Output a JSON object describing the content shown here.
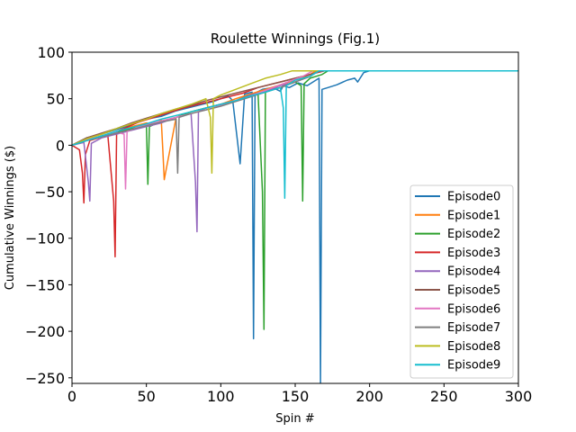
{
  "chart_data": {
    "type": "line",
    "title": "Roulette Winnings (Fig.1)",
    "xlabel": "Spin #",
    "ylabel": "Cumulative Winnings ($)",
    "xlim": [
      0,
      300
    ],
    "ylim": [
      -256,
      100
    ],
    "xticks": [
      0,
      50,
      100,
      150,
      200,
      250,
      300
    ],
    "yticks": [
      100,
      50,
      0,
      -50,
      -100,
      -150,
      -200,
      -250
    ],
    "xtick_labels": [
      "0",
      "50",
      "100",
      "150",
      "200",
      "250",
      "300"
    ],
    "ytick_labels": [
      "100",
      "50",
      "0",
      "−50",
      "−100",
      "−150",
      "−200",
      "−250"
    ],
    "grid": false,
    "legend_position": "lower right",
    "series": [
      {
        "name": "Episode0",
        "color": "#1f77b4",
        "x": [
          0,
          10,
          20,
          30,
          40,
          50,
          60,
          70,
          80,
          95,
          105,
          108,
          113,
          116,
          121,
          122,
          123,
          128,
          135,
          140,
          142,
          146,
          152,
          158,
          164,
          166,
          167,
          168,
          172,
          178,
          185,
          190,
          192,
          196,
          200,
          300
        ],
        "y": [
          0,
          8,
          12,
          17,
          22,
          28,
          31,
          37,
          41,
          47,
          53,
          48,
          -20,
          55,
          57,
          -208,
          56,
          60,
          62,
          58,
          64,
          62,
          67,
          64,
          70,
          72,
          -256,
          60,
          62,
          65,
          70,
          72,
          68,
          78,
          80,
          80
        ]
      },
      {
        "name": "Episode1",
        "color": "#ff7f0e",
        "x": [
          0,
          10,
          20,
          30,
          40,
          50,
          55,
          60,
          61,
          62,
          70,
          80,
          90,
          100,
          110,
          120,
          130,
          140,
          150,
          160,
          164,
          300
        ],
        "y": [
          0,
          5,
          10,
          14,
          20,
          24,
          22,
          27,
          -5,
          -37,
          30,
          36,
          40,
          44,
          50,
          55,
          60,
          65,
          70,
          76,
          80,
          80
        ]
      },
      {
        "name": "Episode2",
        "color": "#2ca02c",
        "x": [
          0,
          10,
          20,
          30,
          40,
          50,
          51,
          52,
          60,
          70,
          80,
          90,
          100,
          110,
          118,
          125,
          128,
          129,
          130,
          140,
          150,
          154,
          155,
          156,
          160,
          168,
          172,
          300
        ],
        "y": [
          0,
          6,
          10,
          14,
          18,
          22,
          -42,
          20,
          26,
          30,
          36,
          40,
          44,
          48,
          53,
          56,
          -50,
          -198,
          58,
          62,
          68,
          64,
          -60,
          66,
          72,
          76,
          80,
          80
        ]
      },
      {
        "name": "Episode3",
        "color": "#d62728",
        "x": [
          0,
          5,
          7,
          8,
          9,
          12,
          18,
          24,
          28,
          29,
          30,
          35,
          45,
          55,
          65,
          75,
          85,
          95,
          105,
          115,
          125,
          135,
          145,
          155,
          165,
          170,
          300
        ],
        "y": [
          0,
          -5,
          -30,
          -62,
          -10,
          5,
          8,
          12,
          -60,
          -120,
          15,
          18,
          25,
          30,
          35,
          40,
          44,
          48,
          52,
          56,
          62,
          66,
          70,
          74,
          78,
          80,
          80
        ]
      },
      {
        "name": "Episode4",
        "color": "#9467bd",
        "x": [
          0,
          8,
          11,
          12,
          13,
          20,
          30,
          40,
          50,
          60,
          70,
          80,
          83,
          84,
          85,
          90,
          100,
          110,
          120,
          130,
          140,
          150,
          160,
          166,
          300
        ],
        "y": [
          0,
          3,
          -40,
          -60,
          2,
          8,
          12,
          16,
          20,
          24,
          30,
          34,
          -40,
          -93,
          36,
          40,
          44,
          48,
          54,
          58,
          64,
          68,
          74,
          80,
          80
        ]
      },
      {
        "name": "Episode5",
        "color": "#8c564b",
        "x": [
          0,
          10,
          20,
          30,
          40,
          50,
          60,
          70,
          80,
          90,
          100,
          110,
          120,
          130,
          140,
          150,
          160,
          168,
          300
        ],
        "y": [
          0,
          8,
          13,
          18,
          24,
          29,
          34,
          39,
          43,
          48,
          52,
          56,
          60,
          64,
          68,
          72,
          76,
          80,
          80
        ]
      },
      {
        "name": "Episode6",
        "color": "#e377c2",
        "x": [
          0,
          10,
          20,
          30,
          35,
          36,
          37,
          45,
          55,
          65,
          75,
          85,
          95,
          105,
          115,
          125,
          135,
          145,
          155,
          162,
          300
        ],
        "y": [
          0,
          6,
          10,
          14,
          12,
          -47,
          15,
          20,
          24,
          28,
          32,
          36,
          40,
          46,
          50,
          56,
          62,
          68,
          74,
          80,
          80
        ]
      },
      {
        "name": "Episode7",
        "color": "#7f7f7f",
        "x": [
          0,
          10,
          20,
          30,
          40,
          50,
          60,
          70,
          71,
          72,
          80,
          90,
          100,
          110,
          120,
          130,
          140,
          150,
          160,
          165,
          300
        ],
        "y": [
          0,
          5,
          9,
          13,
          17,
          21,
          25,
          28,
          -30,
          30,
          34,
          38,
          42,
          47,
          52,
          57,
          62,
          68,
          74,
          80,
          80
        ]
      },
      {
        "name": "Episode8",
        "color": "#bcbd22",
        "x": [
          0,
          10,
          20,
          30,
          40,
          50,
          60,
          70,
          80,
          90,
          93,
          94,
          95,
          100,
          110,
          120,
          130,
          140,
          148,
          300
        ],
        "y": [
          0,
          7,
          12,
          18,
          23,
          28,
          34,
          39,
          44,
          50,
          30,
          -30,
          50,
          54,
          60,
          66,
          72,
          76,
          80,
          80
        ]
      },
      {
        "name": "Episode9",
        "color": "#17becf",
        "x": [
          0,
          10,
          20,
          30,
          40,
          50,
          60,
          70,
          80,
          90,
          100,
          110,
          120,
          130,
          140,
          142,
          143,
          144,
          150,
          160,
          166,
          300
        ],
        "y": [
          0,
          5,
          10,
          15,
          19,
          23,
          28,
          32,
          36,
          40,
          44,
          48,
          53,
          57,
          62,
          40,
          -57,
          64,
          70,
          74,
          80,
          80
        ]
      }
    ]
  }
}
